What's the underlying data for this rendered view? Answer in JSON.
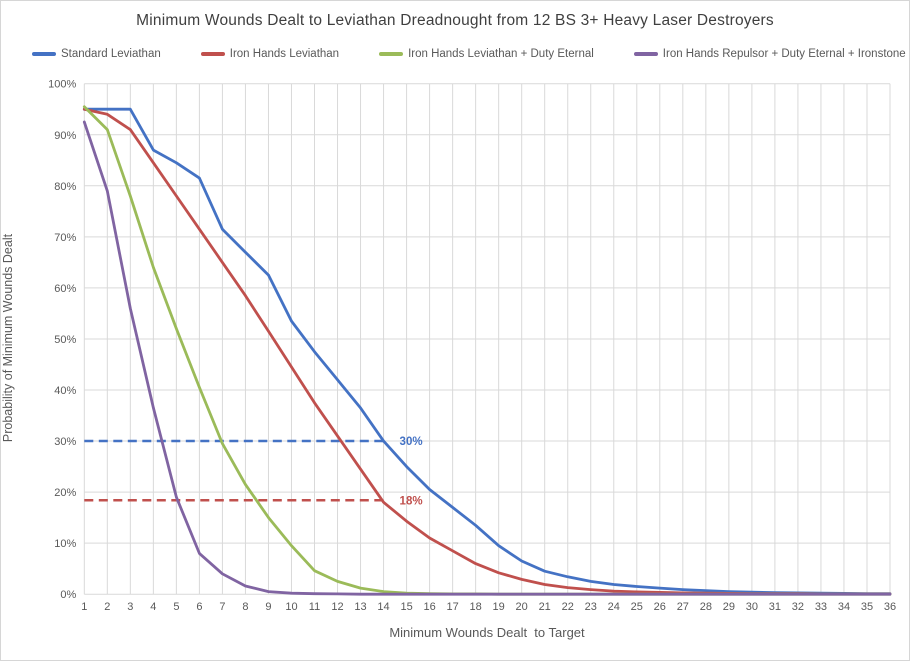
{
  "chart_data": {
    "type": "line",
    "title": "Minimum Wounds Dealt to Leviathan Dreadnought from 12 BS 3+ Heavy Laser Destroyers",
    "x_axis_title": "Minimum Wounds Dealt  to Target",
    "y_axis_title": "Probability of Minimum Wounds Dealt",
    "grid": true,
    "legend_position": "top",
    "x": [
      1,
      2,
      3,
      4,
      5,
      6,
      7,
      8,
      9,
      10,
      11,
      12,
      13,
      14,
      15,
      16,
      17,
      18,
      19,
      20,
      21,
      22,
      23,
      24,
      25,
      26,
      27,
      28,
      29,
      30,
      31,
      32,
      33,
      34,
      35,
      36
    ],
    "y_axis": {
      "min": 0,
      "max": 100,
      "step": 10,
      "tick_suffix": "%"
    },
    "series": [
      {
        "name": "Standard Leviathan",
        "color": "#4472C4",
        "values": [
          95,
          95,
          95,
          87,
          84.5,
          81.5,
          71.5,
          67,
          62.5,
          53.5,
          47.5,
          42,
          36.5,
          30,
          25,
          20.5,
          17,
          13.5,
          9.5,
          6.5,
          4.5,
          3.4,
          2.5,
          1.9,
          1.5,
          1.2,
          0.9,
          0.7,
          0.5,
          0.4,
          0.3,
          0.25,
          0.2,
          0.15,
          0.1,
          0.1
        ]
      },
      {
        "name": "Iron Hands Leviathan",
        "color": "#C0504D",
        "values": [
          95,
          94,
          91,
          84.5,
          78,
          71.5,
          65,
          58.5,
          51.5,
          44.5,
          37.5,
          31,
          24.5,
          18,
          14.3,
          11,
          8.5,
          6,
          4.2,
          2.9,
          1.9,
          1.3,
          0.9,
          0.6,
          0.45,
          0.35,
          0.25,
          0.2,
          0.15,
          0.1,
          0.1,
          0.1,
          0.05,
          0.05,
          0.05,
          0.05
        ]
      },
      {
        "name": "Iron Hands Leviathan + Duty Eternal",
        "color": "#9BBB59",
        "values": [
          95.5,
          91,
          78,
          64,
          52,
          40.5,
          29.5,
          21.5,
          15,
          9.5,
          4.6,
          2.5,
          1.2,
          0.5,
          0.2,
          0.1,
          0.05,
          0.05,
          0,
          0,
          0,
          0,
          0,
          0,
          0,
          0,
          0,
          0,
          0,
          0,
          0,
          0,
          0,
          0,
          0,
          0
        ]
      },
      {
        "name": "Iron Hands Repulsor + Duty Eternal + Ironstone",
        "color": "#8064A2",
        "values": [
          92.5,
          79,
          56,
          36.5,
          19,
          8,
          4,
          1.6,
          0.5,
          0.2,
          0.1,
          0.05,
          0,
          0,
          0,
          0,
          0,
          0,
          0,
          0,
          0,
          0,
          0,
          0,
          0,
          0,
          0,
          0,
          0,
          0,
          0,
          0,
          0,
          0,
          0,
          0
        ]
      }
    ],
    "reference_lines": [
      {
        "label": "30%",
        "value": 30,
        "x_start": 1,
        "x_end": 14,
        "color": "#4472C4",
        "series": "Standard Leviathan"
      },
      {
        "label": "18%",
        "value": 18.4,
        "x_start": 1,
        "x_end": 14,
        "color": "#C0504D",
        "series": "Iron Hands Leviathan"
      }
    ],
    "colors": {
      "gridline": "#d9d9d9",
      "axis_text": "#595959",
      "title_text": "#3f3f3f"
    }
  }
}
